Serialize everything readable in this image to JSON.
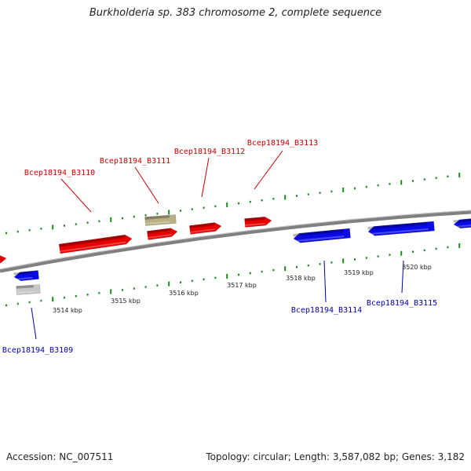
{
  "title": "Burkholderia sp. 383 chromosome 2, complete sequence",
  "footer": {
    "accession": "Accession: NC_007511",
    "summary": "Topology: circular; Length: 3,587,082 bp; Genes: 3,182"
  },
  "colors": {
    "forward_gene": "#e60000",
    "reverse_gene": "#0a0ae6",
    "selected_gene": "#b8b084",
    "gray_gene": "#c8c8c8",
    "forward_label": "#cc0000",
    "reverse_label": "#0000aa",
    "tick": "#1a8a1a",
    "backbone": "#808080"
  },
  "scale_labels": [
    "3514 kbp",
    "3515 kbp",
    "3516 kbp",
    "3517 kbp",
    "3518 kbp",
    "3519 kbp",
    "3520 kbp"
  ],
  "gene_labels": {
    "forward": [
      "Bcep18194_B3110",
      "Bcep18194_B3111",
      "Bcep18194_B3112",
      "Bcep18194_B3113"
    ],
    "reverse": [
      "Bcep18194_B3109",
      "Bcep18194_B3114",
      "Bcep18194_B3115"
    ]
  }
}
